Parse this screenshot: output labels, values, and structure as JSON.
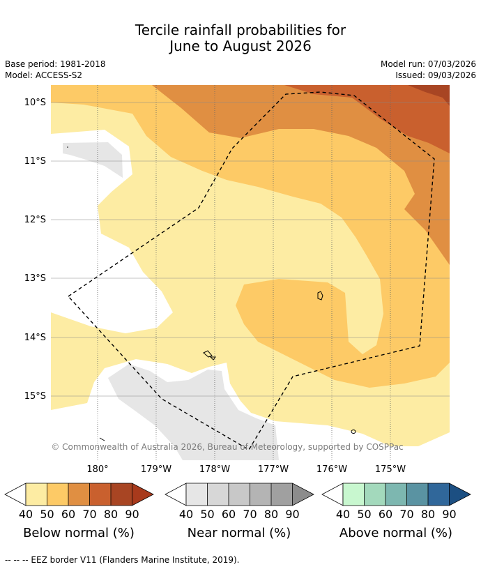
{
  "title": {
    "line1": "Tercile rainfall probabilities for",
    "line2": "June to August 2026"
  },
  "meta": {
    "base_period": "Base period: 1981-2018",
    "model": "Model: ACCESS-S2",
    "model_run": "Model run: 07/03/2026",
    "issued": "Issued: 09/03/2026"
  },
  "map": {
    "lat_labels": [
      "10°S",
      "11°S",
      "12°S",
      "13°S",
      "14°S",
      "15°S"
    ],
    "lon_labels": [
      "180°",
      "179°W",
      "178°W",
      "177°W",
      "176°W",
      "175°W"
    ],
    "credit": "© Commonwealth of Australia 2026, Bureau of Meteorology, supported by COSPPac"
  },
  "legends": [
    {
      "caption": "Below normal (%)",
      "ticks": [
        "40",
        "50",
        "60",
        "70",
        "80",
        "90"
      ],
      "colors": [
        "#fdeca3",
        "#fdca66",
        "#e08f42",
        "#c9602e",
        "#a84523",
        "#a83a1c"
      ]
    },
    {
      "caption": "Near normal (%)",
      "ticks": [
        "40",
        "50",
        "60",
        "70",
        "80",
        "90"
      ],
      "colors": [
        "#e6e6e6",
        "#d7d7d7",
        "#c8c8c8",
        "#b4b4b4",
        "#a0a0a0",
        "#8c8c8c"
      ]
    },
    {
      "caption": "Above normal (%)",
      "ticks": [
        "40",
        "50",
        "60",
        "70",
        "80",
        "90"
      ],
      "colors": [
        "#c8f7cf",
        "#a3d9bc",
        "#7db7b0",
        "#5a93a2",
        "#30679a",
        "#1c4f82"
      ]
    }
  ],
  "footnote": "--  --  -- EEZ border V11 (Flanders Marine Institute, 2019)."
}
